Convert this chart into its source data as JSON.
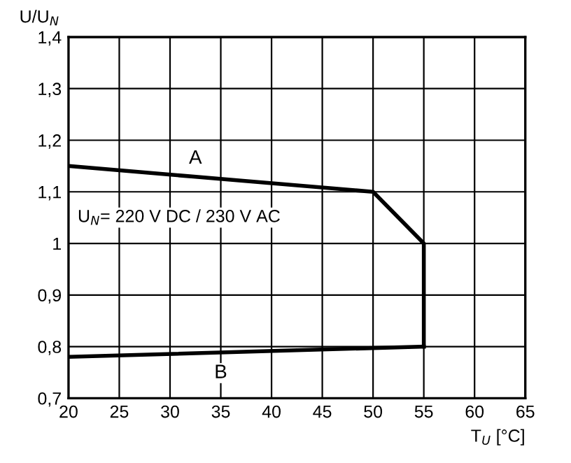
{
  "chart_data": {
    "type": "line",
    "xlabel": "T$_{U}$ [°C]",
    "ylabel": "U/U$_{N}$",
    "series": [
      {
        "name": "A",
        "color": "#000000",
        "x": [
          20,
          50,
          55,
          55
        ],
        "values": [
          1.15,
          1.1,
          1.0,
          0.8
        ]
      },
      {
        "name": "B",
        "color": "#000000",
        "x": [
          20,
          55
        ],
        "values": [
          0.78,
          0.8
        ]
      }
    ],
    "annotations": [
      "U$_{N}$= 220 V DC / 230 V AC"
    ],
    "xlim": [
      20,
      65
    ],
    "ylim": [
      0.7,
      1.4
    ],
    "xticks": [
      20,
      25,
      30,
      35,
      40,
      45,
      50,
      55,
      60,
      65
    ],
    "yticks": [
      {
        "value": 0.7,
        "label": "0,7"
      },
      {
        "value": 0.8,
        "label": "0,8"
      },
      {
        "value": 0.9,
        "label": "0,9"
      },
      {
        "value": 1.0,
        "label": "1"
      },
      {
        "value": 1.1,
        "label": "1,1"
      },
      {
        "value": 1.2,
        "label": "1,2"
      },
      {
        "value": 1.3,
        "label": "1,3"
      },
      {
        "value": 1.4,
        "label": "1,4"
      }
    ],
    "grid": true,
    "marker": "none",
    "line_style": "solid"
  }
}
